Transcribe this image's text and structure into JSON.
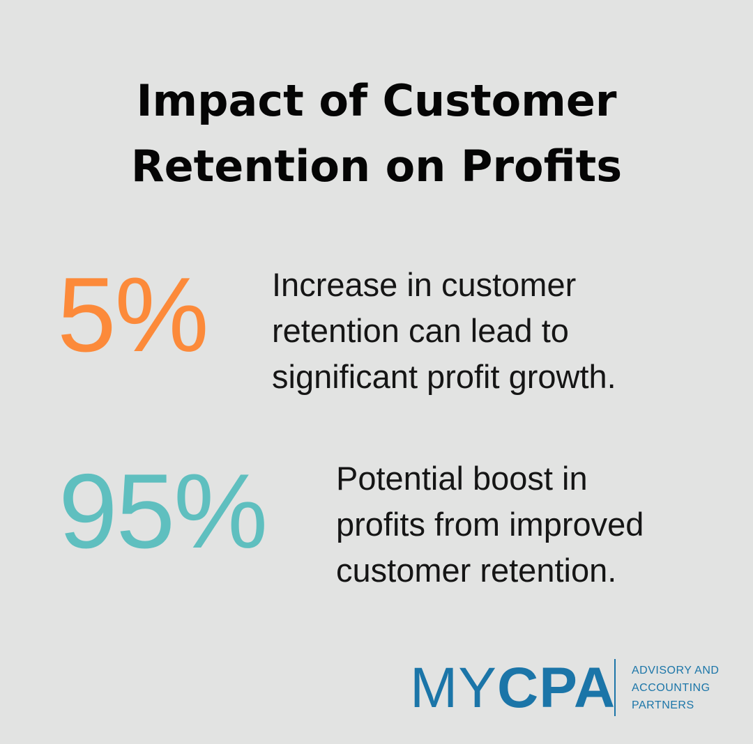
{
  "title": {
    "line1": "Impact of Customer",
    "line2": "Retention on Profits"
  },
  "stats": [
    {
      "value": "5%",
      "color": "#fc8a3a",
      "description": [
        "Increase in customer",
        "retention can lead to",
        "significant profit growth."
      ]
    },
    {
      "value": "95%",
      "color": "#5fbfbf",
      "description": [
        "Potential boost in",
        "profits from improved",
        "customer retention."
      ]
    }
  ],
  "logo": {
    "word_light": "MY",
    "word_bold": "CPA",
    "tagline": [
      "ADVISORY AND",
      "ACCOUNTING",
      "PARTNERS"
    ],
    "color": "#1b75a8"
  }
}
